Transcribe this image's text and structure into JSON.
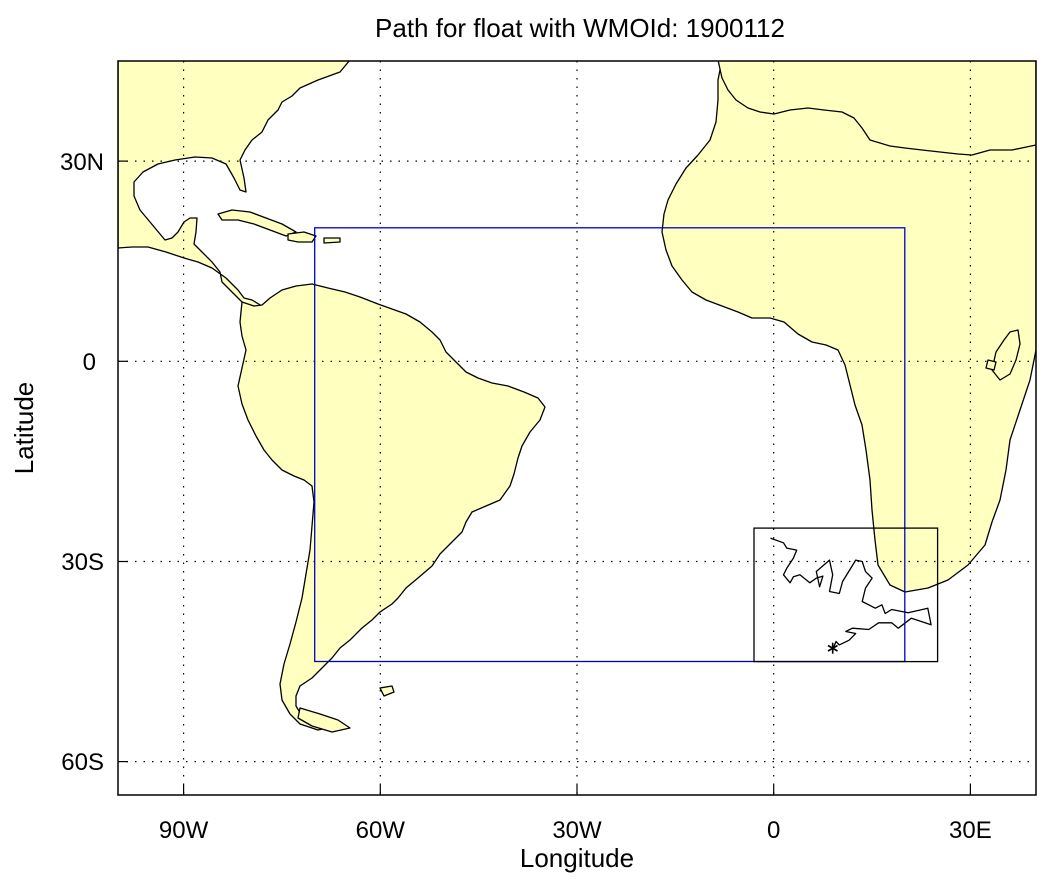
{
  "map": {
    "title": "Path for float with WMOId: 1900112",
    "xlabel": "Longitude",
    "ylabel": "Latitude",
    "x_ticks": [
      {
        "value": -90,
        "label": "90W"
      },
      {
        "value": -60,
        "label": "60W"
      },
      {
        "value": -30,
        "label": "30W"
      },
      {
        "value": 0,
        "label": "0"
      },
      {
        "value": 30,
        "label": "30E"
      }
    ],
    "y_ticks": [
      {
        "value": 30,
        "label": "30N"
      },
      {
        "value": 0,
        "label": "0"
      },
      {
        "value": -30,
        "label": "30S"
      },
      {
        "value": -60,
        "label": "60S"
      }
    ],
    "extent": {
      "lon": [
        -100,
        40
      ],
      "lat": [
        -65,
        45
      ]
    },
    "grid": true,
    "colors": {
      "land": "#ffffc0",
      "ocean": "#ffffff",
      "region_box": "#0000cc",
      "zoom_box": "#000000",
      "track": "#000000"
    },
    "region_box": {
      "lon": [
        -70,
        20
      ],
      "lat": [
        -45,
        20
      ]
    },
    "zoom_box": {
      "lon": [
        -3,
        25
      ],
      "lat": [
        -45,
        -25
      ]
    },
    "start_marker": {
      "symbol": "asterisk",
      "lon": 9,
      "lat": -43
    }
  },
  "chart_data": {
    "type": "line",
    "title": "Path for float with WMOId: 1900112",
    "xlabel": "Longitude",
    "ylabel": "Latitude",
    "xlim": [
      -100,
      40
    ],
    "ylim": [
      -65,
      45
    ],
    "grid": true,
    "series": [
      {
        "x": [
          -0.5,
          1.5,
          2.0,
          3.5,
          3.0,
          2.0,
          1.5,
          2.5,
          3.0,
          4.0,
          5.5,
          6.5,
          7.5,
          7.0,
          6.5,
          8.5,
          9.0,
          8.5,
          10.0,
          10.5,
          12.5,
          13.5,
          14.0,
          15.0,
          14.0,
          13.5,
          15.5,
          16.5,
          17.0,
          18.0,
          20.5,
          23.5,
          24.0,
          21.0,
          19.0,
          18.0,
          16.0,
          14.5,
          12.0,
          11.0,
          12.5,
          11.5,
          10.0,
          9.5,
          9.0
        ],
        "y": [
          -26.5,
          -27.2,
          -28.0,
          -28.3,
          -29.5,
          -31.0,
          -32.0,
          -33.2,
          -32.3,
          -32.0,
          -33.2,
          -32.5,
          -32.2,
          -33.8,
          -31.5,
          -29.8,
          -32.0,
          -34.5,
          -34.8,
          -33.0,
          -29.8,
          -30.0,
          -31.5,
          -32.5,
          -34.0,
          -36.0,
          -37.0,
          -36.5,
          -37.8,
          -37.2,
          -37.7,
          -37.0,
          -39.5,
          -38.5,
          -40.0,
          -39.2,
          -39.2,
          -40.2,
          -40.0,
          -40.5,
          -40.8,
          -41.8,
          -42.5,
          -42.0,
          -43.2
        ]
      }
    ]
  }
}
